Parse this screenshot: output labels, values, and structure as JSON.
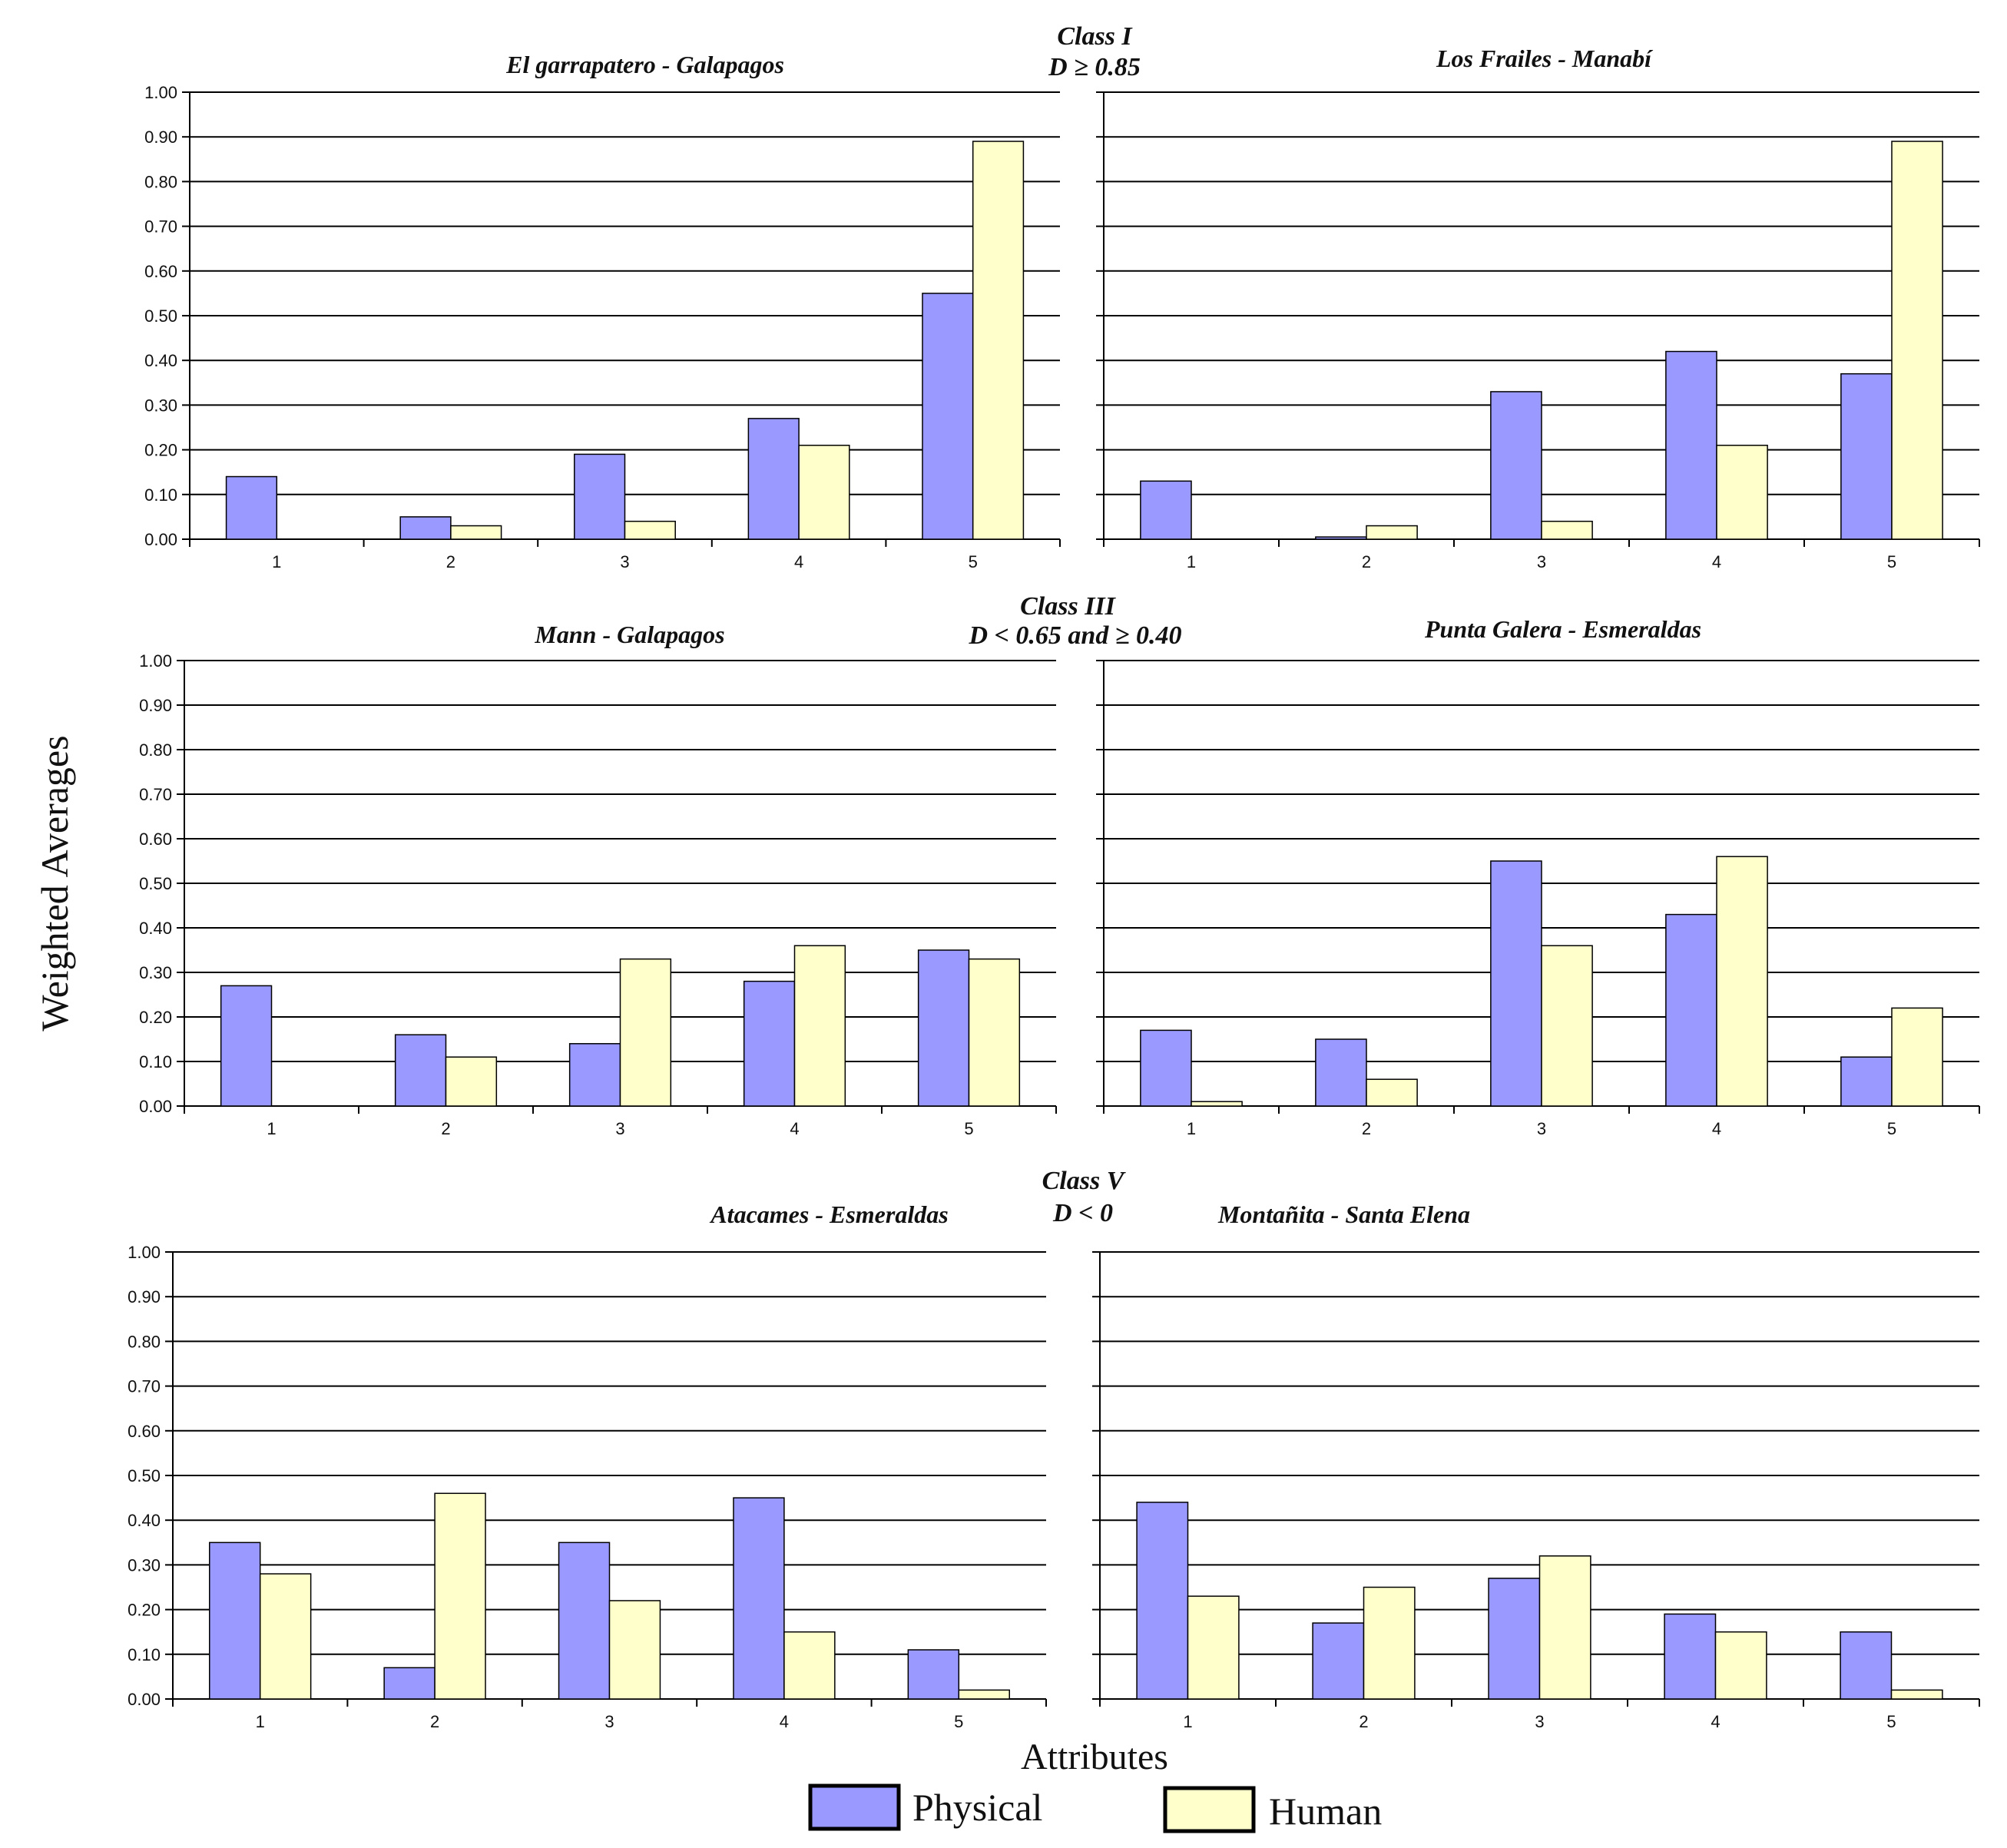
{
  "figure": {
    "ylabel": "Weighted Averages",
    "xlabel": "Attributes"
  },
  "colors": {
    "physical": "#9999ff",
    "human": "#ffffcc",
    "grid": "#000000"
  },
  "class_labels": [
    {
      "name": "Class I",
      "condition": "D ≥ 0.85"
    },
    {
      "name": "Class III",
      "condition": "D < 0.65 and ≥ 0.40"
    },
    {
      "name": "Class V",
      "condition": "D < 0"
    }
  ],
  "legend": {
    "physical": "Physical",
    "human": "Human"
  },
  "chart_data": [
    {
      "type": "bar",
      "title": "El garrapatero - Galapagos",
      "categories": [
        "1",
        "2",
        "3",
        "4",
        "5"
      ],
      "series": [
        {
          "name": "Physical",
          "values": [
            0.14,
            0.05,
            0.19,
            0.27,
            0.55
          ]
        },
        {
          "name": "Human",
          "values": [
            0.0,
            0.03,
            0.04,
            0.21,
            0.89
          ]
        }
      ],
      "ylim": [
        0,
        1
      ],
      "yticks": [
        "0.00",
        "0.10",
        "0.20",
        "0.30",
        "0.40",
        "0.50",
        "0.60",
        "0.70",
        "0.80",
        "0.90",
        "1.00"
      ],
      "grid": true
    },
    {
      "type": "bar",
      "title": "Los Frailes - Manabí",
      "categories": [
        "1",
        "2",
        "3",
        "4",
        "5"
      ],
      "series": [
        {
          "name": "Physical",
          "values": [
            0.13,
            0.005,
            0.33,
            0.42,
            0.37
          ]
        },
        {
          "name": "Human",
          "values": [
            0.0,
            0.03,
            0.04,
            0.21,
            0.89
          ]
        }
      ],
      "ylim": [
        0,
        1
      ],
      "yticks": [],
      "grid": true
    },
    {
      "type": "bar",
      "title": "Mann - Galapagos",
      "categories": [
        "1",
        "2",
        "3",
        "4",
        "5"
      ],
      "series": [
        {
          "name": "Physical",
          "values": [
            0.27,
            0.16,
            0.14,
            0.28,
            0.35
          ]
        },
        {
          "name": "Human",
          "values": [
            0.0,
            0.11,
            0.33,
            0.36,
            0.33
          ]
        }
      ],
      "ylim": [
        0,
        1
      ],
      "yticks": [
        "0.00",
        "0.10",
        "0.20",
        "0.30",
        "0.40",
        "0.50",
        "0.60",
        "0.70",
        "0.80",
        "0.90",
        "1.00"
      ],
      "grid": true
    },
    {
      "type": "bar",
      "title": "Punta Galera - Esmeraldas",
      "categories": [
        "1",
        "2",
        "3",
        "4",
        "5"
      ],
      "series": [
        {
          "name": "Physical",
          "values": [
            0.17,
            0.15,
            0.55,
            0.43,
            0.11
          ]
        },
        {
          "name": "Human",
          "values": [
            0.01,
            0.06,
            0.36,
            0.56,
            0.22
          ]
        }
      ],
      "ylim": [
        0,
        1
      ],
      "yticks": [],
      "grid": true
    },
    {
      "type": "bar",
      "title": "Atacames - Esmeraldas",
      "categories": [
        "1",
        "2",
        "3",
        "4",
        "5"
      ],
      "series": [
        {
          "name": "Physical",
          "values": [
            0.35,
            0.07,
            0.35,
            0.45,
            0.11
          ]
        },
        {
          "name": "Human",
          "values": [
            0.28,
            0.46,
            0.22,
            0.15,
            0.02
          ]
        }
      ],
      "ylim": [
        0,
        1
      ],
      "yticks": [
        "0.00",
        "0.10",
        "0.20",
        "0.30",
        "0.40",
        "0.50",
        "0.60",
        "0.70",
        "0.80",
        "0.90",
        "1.00"
      ],
      "grid": true
    },
    {
      "type": "bar",
      "title": "Montañita - Santa Elena",
      "categories": [
        "1",
        "2",
        "3",
        "4",
        "5"
      ],
      "series": [
        {
          "name": "Physical",
          "values": [
            0.44,
            0.17,
            0.27,
            0.19,
            0.15
          ]
        },
        {
          "name": "Human",
          "values": [
            0.23,
            0.25,
            0.32,
            0.15,
            0.02
          ]
        }
      ],
      "ylim": [
        0,
        1
      ],
      "yticks": [],
      "grid": true
    }
  ]
}
